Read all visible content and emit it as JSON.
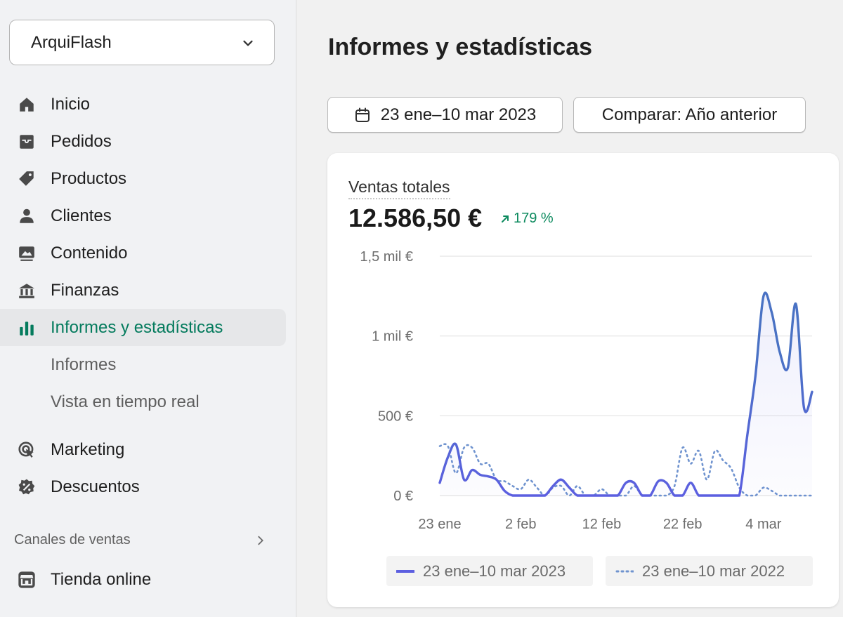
{
  "sidebar": {
    "store_name": "ArquiFlash",
    "items": [
      {
        "label": "Inicio",
        "icon": "home-icon"
      },
      {
        "label": "Pedidos",
        "icon": "inbox-icon"
      },
      {
        "label": "Productos",
        "icon": "tag-icon"
      },
      {
        "label": "Clientes",
        "icon": "person-icon"
      },
      {
        "label": "Contenido",
        "icon": "image-icon"
      },
      {
        "label": "Finanzas",
        "icon": "bank-icon"
      },
      {
        "label": "Informes y estadísticas",
        "icon": "bar-chart-icon",
        "active": true
      }
    ],
    "sub_items": [
      "Informes",
      "Vista en tiempo real"
    ],
    "items2": [
      {
        "label": "Marketing",
        "icon": "target-icon"
      },
      {
        "label": "Descuentos",
        "icon": "discount-icon"
      }
    ],
    "channels_label": "Canales de ventas",
    "online_store": "Tienda online"
  },
  "main": {
    "title": "Informes y estadísticas",
    "date_range": "23 ene–10 mar 2023",
    "compare_label": "Comparar: Año anterior"
  },
  "card": {
    "metric_label": "Ventas totales",
    "metric_value": "12.586,50 €",
    "metric_change": "179 %"
  },
  "colors": {
    "accent_green": "#047b5d",
    "series_current": "#5c5fe0",
    "series_current_high": "#4a72c4",
    "series_previous": "#6f93cf"
  },
  "chart_data": {
    "type": "line",
    "y_ticks": [
      "1,5 mil €",
      "1 mil €",
      "500 €",
      "0 €"
    ],
    "x_ticks": [
      "23 ene",
      "2 feb",
      "12 feb",
      "22 feb",
      "4 mar"
    ],
    "ylim": [
      0,
      1500
    ],
    "xlim": [
      "2023-01-23",
      "2023-03-10"
    ],
    "series": [
      {
        "name": "23 ene–10 mar 2023",
        "style": "solid",
        "x": [
          "2023-01-23",
          "2023-01-24",
          "2023-01-25",
          "2023-01-26",
          "2023-01-27",
          "2023-01-28",
          "2023-01-29",
          "2023-01-30",
          "2023-01-31",
          "2023-02-01",
          "2023-02-02",
          "2023-02-03",
          "2023-02-04",
          "2023-02-05",
          "2023-02-06",
          "2023-02-07",
          "2023-02-08",
          "2023-02-09",
          "2023-02-10",
          "2023-02-11",
          "2023-02-12",
          "2023-02-13",
          "2023-02-14",
          "2023-02-15",
          "2023-02-16",
          "2023-02-17",
          "2023-02-18",
          "2023-02-19",
          "2023-02-20",
          "2023-02-21",
          "2023-02-22",
          "2023-02-23",
          "2023-02-24",
          "2023-02-25",
          "2023-02-26",
          "2023-02-27",
          "2023-02-28",
          "2023-03-01",
          "2023-03-02",
          "2023-03-03",
          "2023-03-04",
          "2023-03-05",
          "2023-03-06",
          "2023-03-07",
          "2023-03-08",
          "2023-03-09",
          "2023-03-10"
        ],
        "values": [
          80,
          240,
          320,
          100,
          160,
          130,
          120,
          100,
          30,
          0,
          0,
          0,
          0,
          0,
          60,
          100,
          50,
          0,
          0,
          0,
          0,
          0,
          0,
          80,
          80,
          0,
          0,
          90,
          80,
          0,
          0,
          80,
          0,
          0,
          0,
          0,
          0,
          0,
          380,
          750,
          1250,
          1150,
          900,
          800,
          1200,
          550,
          650
        ]
      },
      {
        "name": "23 ene–10 mar 2022",
        "style": "dotted",
        "x": [
          "2023-01-23",
          "2023-01-24",
          "2023-01-25",
          "2023-01-26",
          "2023-01-27",
          "2023-01-28",
          "2023-01-29",
          "2023-01-30",
          "2023-01-31",
          "2023-02-01",
          "2023-02-02",
          "2023-02-03",
          "2023-02-04",
          "2023-02-05",
          "2023-02-06",
          "2023-02-07",
          "2023-02-08",
          "2023-02-09",
          "2023-02-10",
          "2023-02-11",
          "2023-02-12",
          "2023-02-13",
          "2023-02-14",
          "2023-02-15",
          "2023-02-16",
          "2023-02-17",
          "2023-02-18",
          "2023-02-19",
          "2023-02-20",
          "2023-02-21",
          "2023-02-22",
          "2023-02-23",
          "2023-02-24",
          "2023-02-25",
          "2023-02-26",
          "2023-02-27",
          "2023-02-28",
          "2023-03-01",
          "2023-03-02",
          "2023-03-03",
          "2023-03-04",
          "2023-03-05",
          "2023-03-06",
          "2023-03-07",
          "2023-03-08",
          "2023-03-09",
          "2023-03-10"
        ],
        "values": [
          310,
          310,
          140,
          300,
          300,
          200,
          200,
          100,
          90,
          60,
          40,
          100,
          50,
          0,
          50,
          60,
          0,
          60,
          0,
          0,
          40,
          0,
          0,
          0,
          60,
          0,
          0,
          0,
          0,
          60,
          300,
          200,
          280,
          100,
          280,
          220,
          170,
          50,
          0,
          0,
          50,
          30,
          0,
          0,
          0,
          0,
          0
        ]
      }
    ],
    "grid": true,
    "legend_position": "bottom"
  }
}
